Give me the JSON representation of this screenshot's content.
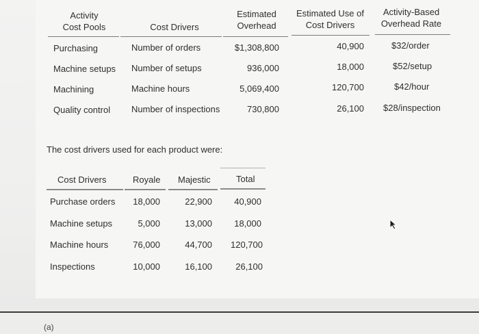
{
  "activity_table": {
    "headers": {
      "activity_cost_pools": "Activity\nCost Pools",
      "cost_drivers": "Cost Drivers",
      "estimated_overhead": "Estimated\nOverhead",
      "estimated_use": "Estimated Use of\nCost Drivers",
      "rate": "Activity-Based\nOverhead Rate"
    },
    "rows": [
      {
        "pool": "Purchasing",
        "driver": "Number of orders",
        "overhead": "$1,308,800",
        "use": "40,900",
        "rate": "$32/order"
      },
      {
        "pool": "Machine setups",
        "driver": "Number of setups",
        "overhead": "936,000",
        "use": "18,000",
        "rate": "$52/setup"
      },
      {
        "pool": "Machining",
        "driver": "Machine hours",
        "overhead": "5,069,400",
        "use": "120,700",
        "rate": "$42/hour"
      },
      {
        "pool": "Quality control",
        "driver": "Number of inspections",
        "overhead": "730,800",
        "use": "26,100",
        "rate": "$28/inspection"
      }
    ]
  },
  "intro_text": "The cost drivers used for each product were:",
  "product_table": {
    "headers": {
      "cost_drivers": "Cost Drivers",
      "royale": "Royale",
      "majestic": "Majestic",
      "total": "Total"
    },
    "rows": [
      {
        "driver": "Purchase orders",
        "royale": "18,000",
        "majestic": "22,900",
        "total": "40,900"
      },
      {
        "driver": "Machine setups",
        "royale": "5,000",
        "majestic": "13,000",
        "total": "18,000"
      },
      {
        "driver": "Machine hours",
        "royale": "76,000",
        "majestic": "44,700",
        "total": "120,700"
      },
      {
        "driver": "Inspections",
        "royale": "10,000",
        "majestic": "16,100",
        "total": "26,100"
      }
    ]
  },
  "footer": {
    "corner_label": "(a)"
  }
}
